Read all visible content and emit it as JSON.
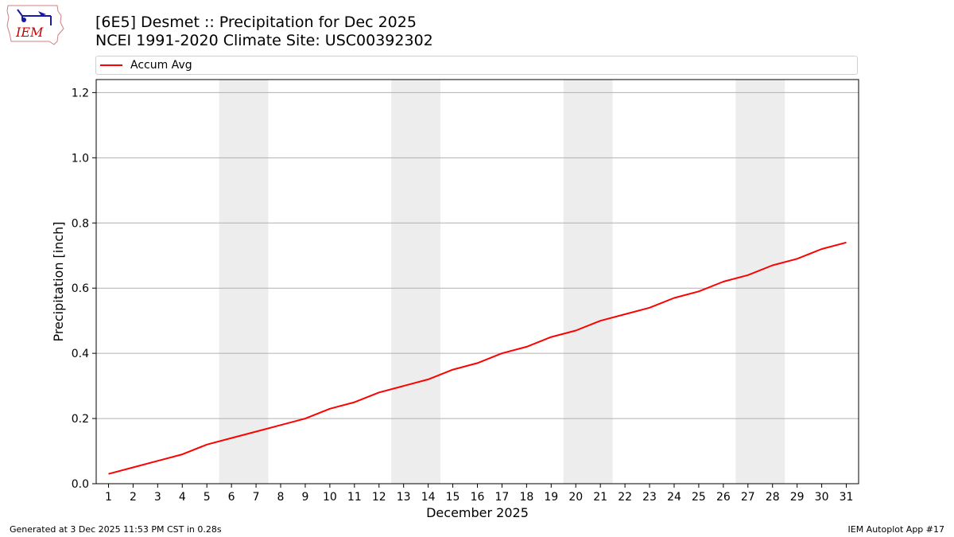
{
  "logo": {
    "text": "IEM",
    "color": "#cc0000"
  },
  "title_line1": "[6E5] Desmet :: Precipitation for Dec 2025",
  "title_line2": "NCEI 1991-2020 Climate Site: USC00392302",
  "footer_left": "Generated at 3 Dec 2025 11:53 PM CST in 0.28s",
  "footer_right": "IEM Autoplot App #17",
  "chart_data": {
    "type": "line",
    "xlabel": "December 2025",
    "ylabel": "Precipitation [inch]",
    "x": [
      1,
      2,
      3,
      4,
      5,
      6,
      7,
      8,
      9,
      10,
      11,
      12,
      13,
      14,
      15,
      16,
      17,
      18,
      19,
      20,
      21,
      22,
      23,
      24,
      25,
      26,
      27,
      28,
      29,
      30,
      31
    ],
    "xlim": [
      0.5,
      31.5
    ],
    "ylim": [
      0,
      1.24
    ],
    "yticks": [
      0.0,
      0.2,
      0.4,
      0.6,
      0.8,
      1.0,
      1.2
    ],
    "ytick_labels": [
      "0.0",
      "0.2",
      "0.4",
      "0.6",
      "0.8",
      "1.0",
      "1.2"
    ],
    "grid": "horizontal",
    "legend_position": "top",
    "weekend_shading": [
      [
        6,
        7
      ],
      [
        13,
        14
      ],
      [
        20,
        21
      ],
      [
        27,
        28
      ]
    ],
    "weekend_color": "#ededed",
    "series": [
      {
        "name": "Accum Avg",
        "color": "#ff0000",
        "values": [
          0.03,
          0.05,
          0.07,
          0.09,
          0.12,
          0.14,
          0.16,
          0.18,
          0.2,
          0.23,
          0.25,
          0.28,
          0.3,
          0.32,
          0.35,
          0.37,
          0.4,
          0.42,
          0.45,
          0.47,
          0.5,
          0.52,
          0.54,
          0.57,
          0.59,
          0.62,
          0.64,
          0.67,
          0.69,
          0.72,
          0.74
        ]
      }
    ]
  }
}
